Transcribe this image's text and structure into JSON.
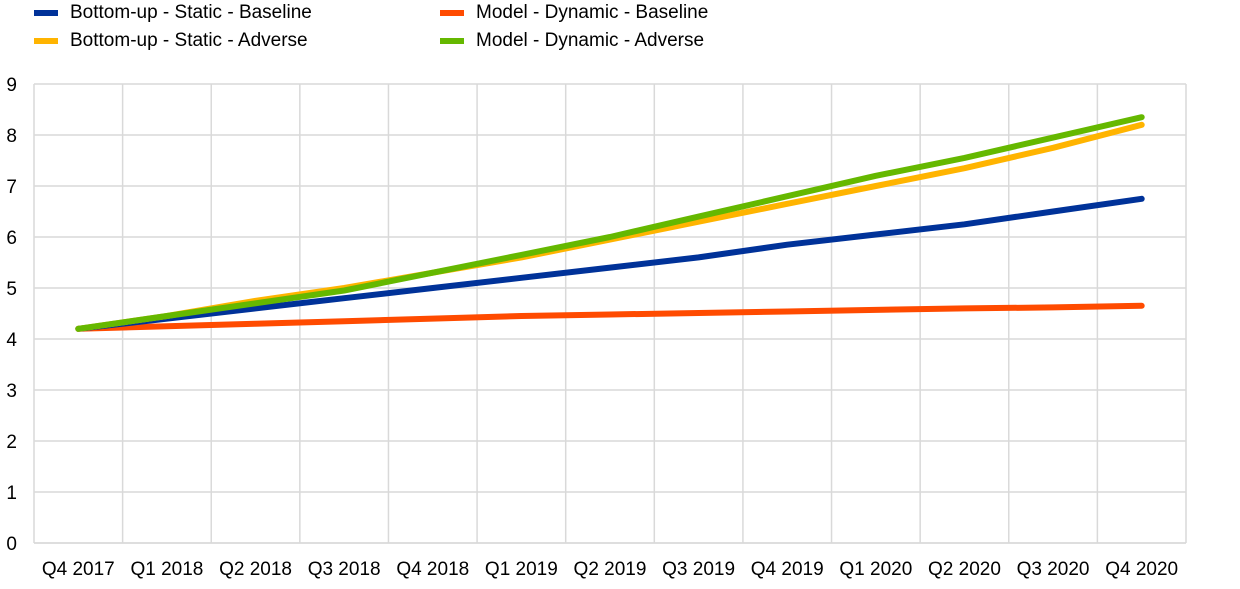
{
  "chart_data": {
    "type": "line",
    "title": "",
    "xlabel": "",
    "ylabel": "",
    "categories": [
      "Q4 2017",
      "Q1 2018",
      "Q2 2018",
      "Q3 2018",
      "Q4 2018",
      "Q1 2019",
      "Q2 2019",
      "Q3 2019",
      "Q4 2019",
      "Q1 2020",
      "Q2 2020",
      "Q3 2020",
      "Q4 2020"
    ],
    "ylim": [
      0,
      9
    ],
    "yticks": [
      0,
      1,
      2,
      3,
      4,
      5,
      6,
      7,
      8,
      9
    ],
    "grid": true,
    "legend_position": "top-left",
    "series": [
      {
        "name": "Bottom-up - Static - Baseline",
        "color": "#003299",
        "values": [
          4.2,
          4.4,
          4.6,
          4.8,
          5.0,
          5.2,
          5.4,
          5.6,
          5.85,
          6.05,
          6.25,
          6.5,
          6.75
        ]
      },
      {
        "name": "Bottom-up - Static - Adverse",
        "color": "#FFB400",
        "values": [
          4.2,
          4.45,
          4.75,
          5.0,
          5.3,
          5.6,
          5.95,
          6.3,
          6.65,
          7.0,
          7.35,
          7.75,
          8.2
        ]
      },
      {
        "name": "Model - Dynamic - Baseline",
        "color": "#FF4B00",
        "values": [
          4.2,
          4.25,
          4.3,
          4.35,
          4.4,
          4.45,
          4.48,
          4.51,
          4.54,
          4.57,
          4.6,
          4.62,
          4.65
        ]
      },
      {
        "name": "Model - Dynamic - Adverse",
        "color": "#65B800",
        "values": [
          4.2,
          4.45,
          4.7,
          4.95,
          5.3,
          5.65,
          6.0,
          6.4,
          6.8,
          7.2,
          7.55,
          7.95,
          8.35
        ]
      }
    ]
  }
}
